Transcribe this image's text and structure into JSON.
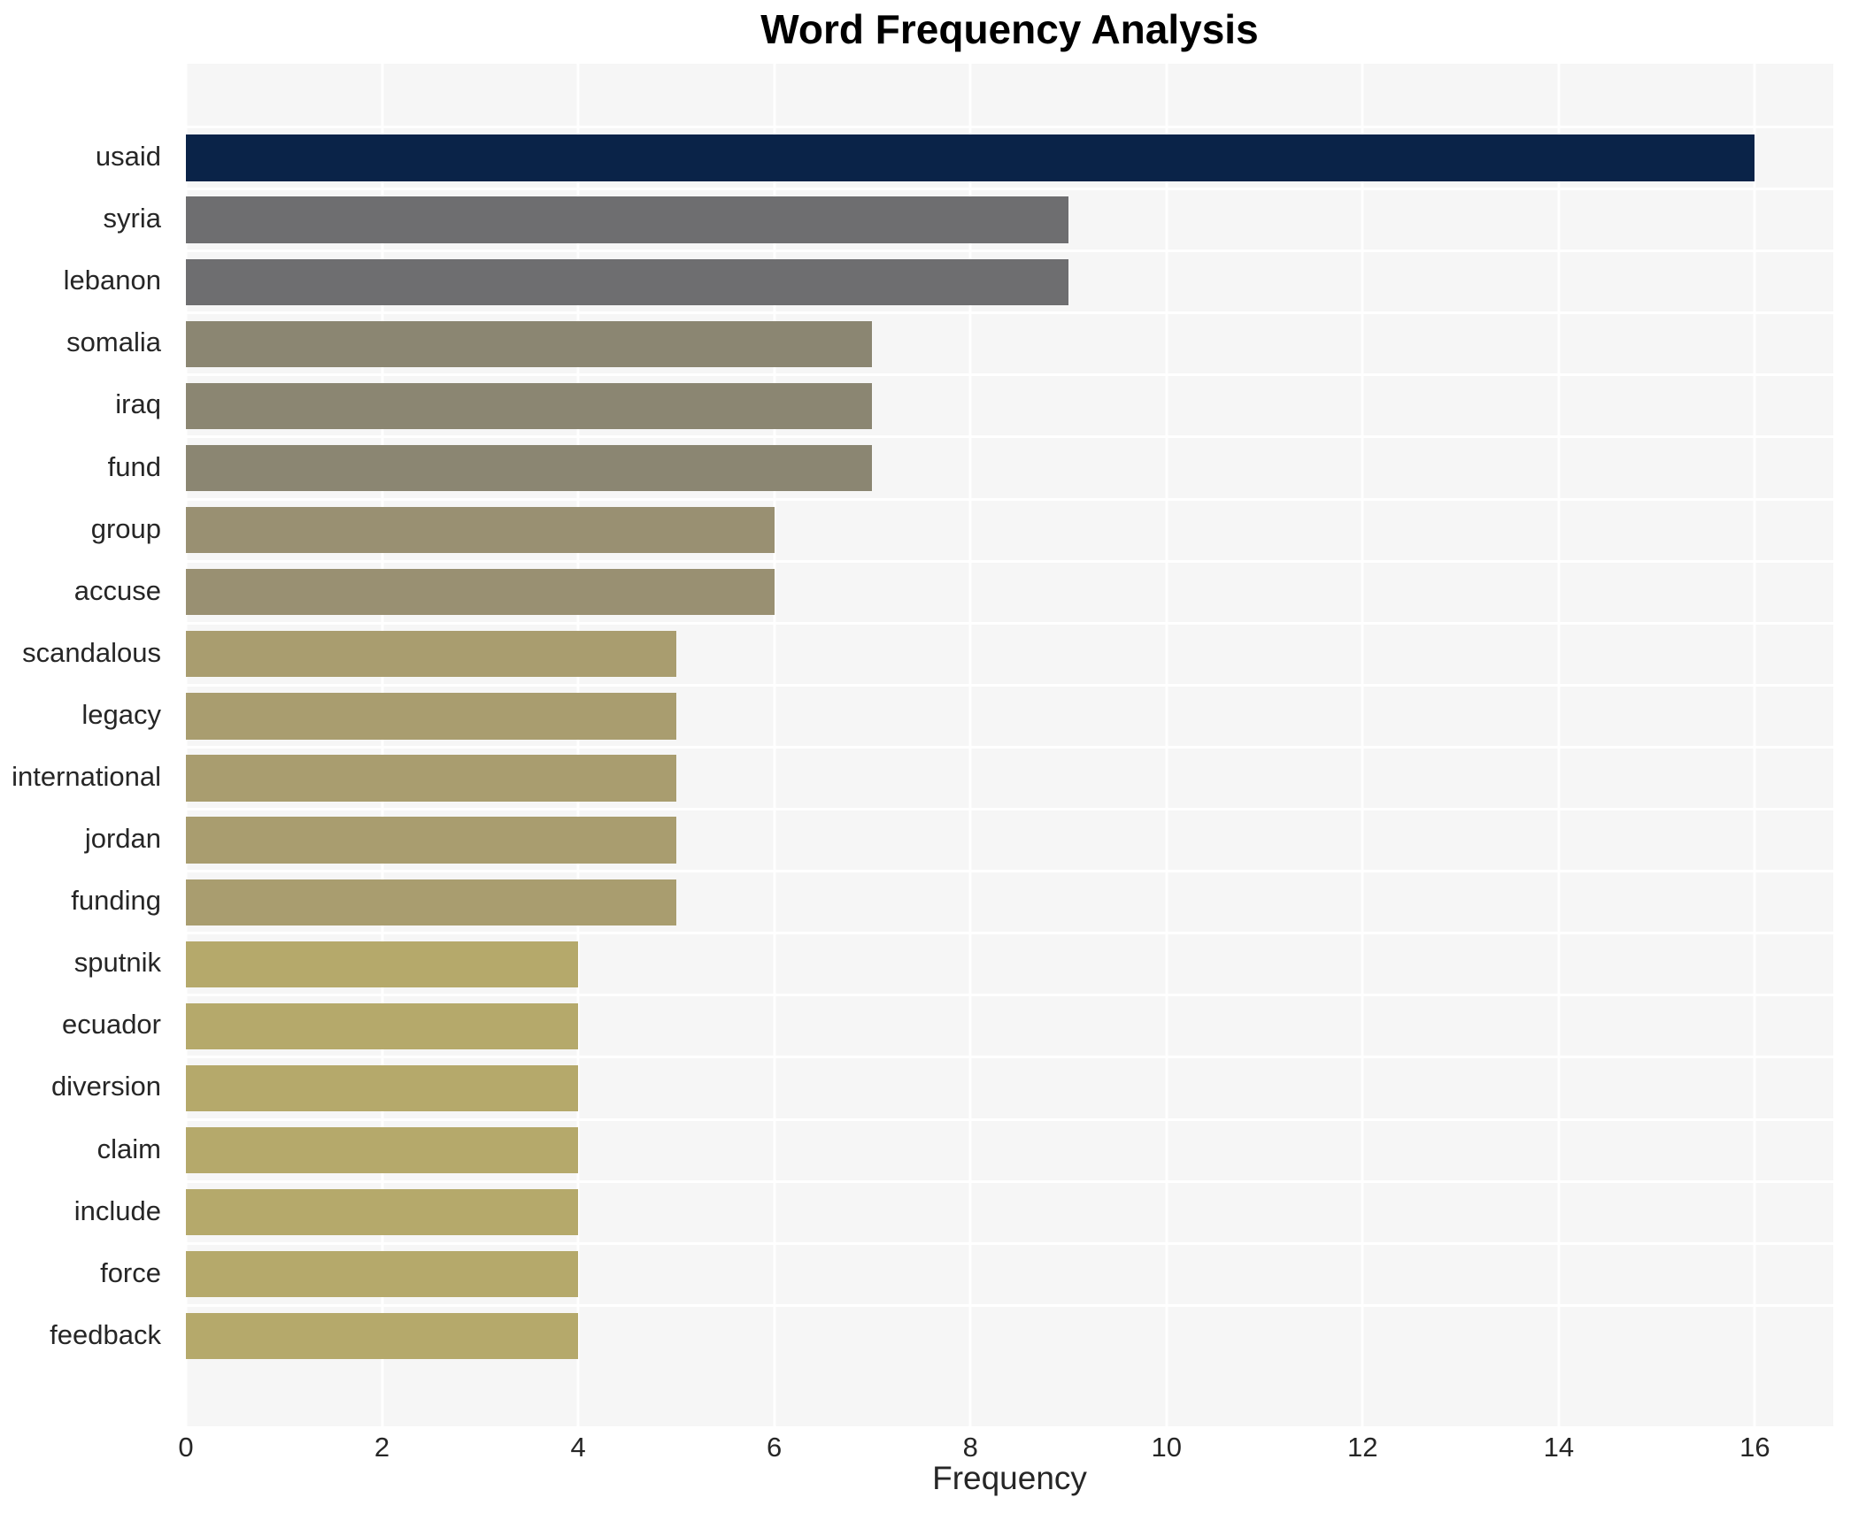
{
  "chart_data": {
    "type": "bar",
    "orientation": "horizontal",
    "title": "Word Frequency Analysis",
    "xlabel": "Frequency",
    "ylabel": "",
    "categories": [
      "usaid",
      "syria",
      "lebanon",
      "somalia",
      "iraq",
      "fund",
      "group",
      "accuse",
      "scandalous",
      "legacy",
      "international",
      "jordan",
      "funding",
      "sputnik",
      "ecuador",
      "diversion",
      "claim",
      "include",
      "force",
      "feedback"
    ],
    "values": [
      16,
      9,
      9,
      7,
      7,
      7,
      6,
      6,
      5,
      5,
      5,
      5,
      5,
      4,
      4,
      4,
      4,
      4,
      4,
      4
    ],
    "bar_colors": [
      "#0a2348",
      "#6e6e70",
      "#6e6e70",
      "#8b8672",
      "#8b8672",
      "#8b8672",
      "#999072",
      "#999072",
      "#a99d6f",
      "#a99d6f",
      "#a99d6f",
      "#a99d6f",
      "#a99d6f",
      "#b5a96b",
      "#b5a96b",
      "#b5a96b",
      "#b5a96b",
      "#b5a96b",
      "#b5a96b",
      "#b5a96b"
    ],
    "xticks": [
      0,
      2,
      4,
      6,
      8,
      10,
      12,
      14,
      16
    ],
    "xlim": [
      0,
      16.8
    ],
    "grid": true,
    "legend": "none"
  },
  "colors": {
    "page_bg": "#ffffff",
    "plot_bg": "#f6f6f6",
    "gridline": "#ffffff",
    "tick_text": "#262626",
    "title_text": "#000000"
  }
}
